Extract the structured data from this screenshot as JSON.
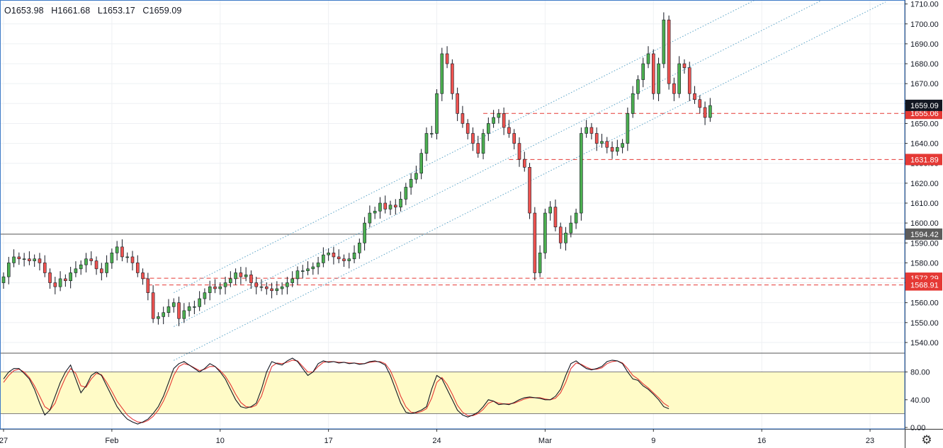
{
  "ohlc": {
    "open": "O1653.98",
    "high": "H1661.68",
    "low": "L1653.17",
    "close": "C1659.09"
  },
  "settings_icon": "gear-icon",
  "colors": {
    "up": "#4caf50",
    "down": "#ef5350",
    "wick": "#131722",
    "level_red": "#e53935",
    "support_gray": "#555555",
    "channel": "#5ba4c7",
    "stoch_k": "#131722",
    "stoch_d": "#e53935",
    "stoch_band": "#fffbc7",
    "last_price_bg": "#131722"
  },
  "chart_data": [
    {
      "type": "candlestick",
      "name": "price",
      "x_labels": [
        {
          "label": "27",
          "index": 0
        },
        {
          "label": "Feb",
          "index": 21
        },
        {
          "label": "10",
          "index": 42
        },
        {
          "label": "17",
          "index": 63
        },
        {
          "label": "24",
          "index": 84
        },
        {
          "label": "Mar",
          "index": 105
        },
        {
          "label": "9",
          "index": 126
        },
        {
          "label": "16",
          "index": 147
        },
        {
          "label": "23",
          "index": 168
        }
      ],
      "x_range": [
        0,
        180
      ],
      "ylim": [
        1535,
        1712
      ],
      "y_ticks": [
        1540,
        1550,
        1560,
        1570,
        1580,
        1590,
        1600,
        1610,
        1620,
        1630,
        1640,
        1650,
        1660,
        1670,
        1680,
        1690,
        1700,
        1710
      ],
      "closes": [
        1573,
        1580,
        1583,
        1582,
        1582,
        1581,
        1582,
        1580,
        1575,
        1570,
        1568,
        1572,
        1571,
        1575,
        1577,
        1579,
        1582,
        1581,
        1577,
        1575,
        1580,
        1585,
        1588,
        1583,
        1583,
        1580,
        1575,
        1572,
        1565,
        1552,
        1553,
        1555,
        1558,
        1560,
        1552,
        1556,
        1558,
        1558,
        1562,
        1565,
        1568,
        1567,
        1568,
        1570,
        1572,
        1575,
        1573,
        1574,
        1570,
        1568,
        1568,
        1567,
        1566,
        1567,
        1568,
        1570,
        1572,
        1576,
        1576,
        1577,
        1578,
        1580,
        1584,
        1585,
        1583,
        1582,
        1581,
        1582,
        1585,
        1590,
        1600,
        1605,
        1606,
        1610,
        1607,
        1609,
        1608,
        1612,
        1618,
        1622,
        1625,
        1635,
        1645,
        1645,
        1665,
        1685,
        1680,
        1665,
        1655,
        1650,
        1645,
        1640,
        1635,
        1645,
        1650,
        1653,
        1655,
        1648,
        1645,
        1640,
        1632,
        1628,
        1605,
        1575,
        1585,
        1605,
        1608,
        1598,
        1590,
        1595,
        1600,
        1605,
        1645,
        1648,
        1645,
        1640,
        1641,
        1638,
        1636,
        1638,
        1640,
        1655,
        1665,
        1672,
        1680,
        1685,
        1665,
        1680,
        1702,
        1670,
        1665,
        1680,
        1678,
        1665,
        1662,
        1658,
        1653,
        1659
      ],
      "support_line": {
        "value": 1594.42,
        "label": "1594.42"
      },
      "levels": [
        {
          "value": 1655.06,
          "label": "1655.06",
          "start_index": 93
        },
        {
          "value": 1631.89,
          "label": "1631.89",
          "start_index": 98
        },
        {
          "value": 1572.29,
          "label": "1572.29",
          "start_index": 27
        },
        {
          "value": 1568.91,
          "label": "1568.91",
          "start_index": 28
        }
      ],
      "last_price": {
        "value": 1659.09,
        "label": "1659.09"
      },
      "channel": {
        "start_index": 33,
        "end_index": 171,
        "lines": [
          {
            "start": 1565,
            "end": 1745
          },
          {
            "start": 1548,
            "end": 1728
          },
          {
            "start": 1531,
            "end": 1711
          }
        ]
      }
    },
    {
      "type": "line",
      "name": "stochastic",
      "ylim": [
        0,
        100
      ],
      "y_ticks": [
        {
          "value": 0,
          "label": "0.00"
        },
        {
          "value": 40,
          "label": "40.00"
        },
        {
          "value": 80,
          "label": "80.00"
        }
      ],
      "band": [
        20,
        80
      ],
      "k": [
        70,
        80,
        85,
        85,
        78,
        70,
        55,
        35,
        18,
        25,
        45,
        65,
        80,
        90,
        70,
        50,
        60,
        75,
        80,
        75,
        60,
        45,
        30,
        20,
        12,
        8,
        5,
        8,
        12,
        20,
        30,
        45,
        65,
        85,
        92,
        95,
        90,
        85,
        80,
        85,
        92,
        88,
        80,
        70,
        55,
        40,
        30,
        28,
        30,
        35,
        55,
        80,
        95,
        92,
        90,
        96,
        100,
        95,
        85,
        75,
        80,
        92,
        96,
        94,
        95,
        93,
        94,
        92,
        93,
        91,
        92,
        95,
        96,
        94,
        90,
        75,
        55,
        35,
        22,
        20,
        22,
        25,
        30,
        55,
        75,
        70,
        55,
        40,
        25,
        18,
        15,
        18,
        22,
        30,
        40,
        38,
        33,
        34,
        33,
        36,
        40,
        43,
        44,
        43,
        42,
        40,
        40,
        45,
        55,
        75,
        92,
        96,
        90,
        85,
        83,
        85,
        88,
        95,
        97,
        96,
        92,
        80,
        70,
        68,
        60,
        55,
        48,
        40,
        30,
        27
      ],
      "d": [
        65,
        75,
        82,
        84,
        80,
        72,
        60,
        45,
        30,
        25,
        35,
        55,
        72,
        85,
        78,
        60,
        58,
        70,
        78,
        76,
        65,
        52,
        38,
        28,
        18,
        12,
        8,
        7,
        10,
        16,
        25,
        38,
        55,
        75,
        88,
        92,
        90,
        86,
        82,
        84,
        88,
        88,
        82,
        74,
        62,
        48,
        36,
        30,
        29,
        32,
        45,
        68,
        88,
        93,
        92,
        94,
        97,
        96,
        88,
        80,
        80,
        88,
        94,
        95,
        95,
        94,
        94,
        93,
        93,
        92,
        92,
        94,
        95,
        95,
        92,
        82,
        65,
        45,
        30,
        22,
        21,
        23,
        27,
        42,
        65,
        72,
        62,
        48,
        32,
        22,
        17,
        17,
        20,
        26,
        35,
        38,
        35,
        34,
        34,
        35,
        38,
        41,
        43,
        43,
        43,
        41,
        40,
        42,
        50,
        65,
        85,
        93,
        91,
        87,
        84,
        84,
        86,
        92,
        95,
        96,
        93,
        85,
        75,
        70,
        63,
        57,
        50,
        43,
        35,
        30
      ]
    }
  ]
}
